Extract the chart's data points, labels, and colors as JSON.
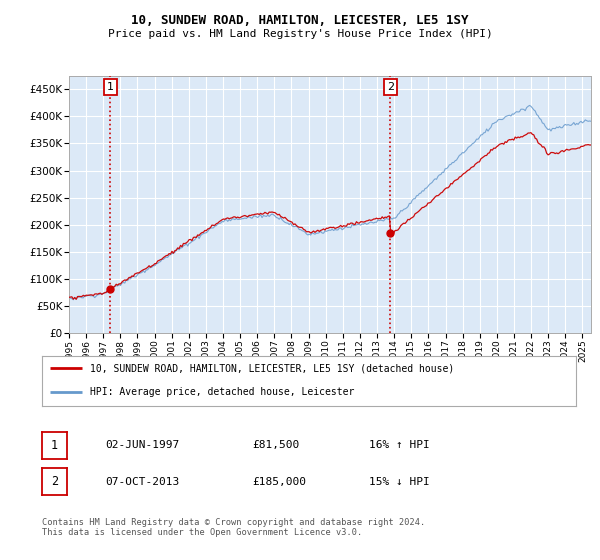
{
  "title1": "10, SUNDEW ROAD, HAMILTON, LEICESTER, LE5 1SY",
  "title2": "Price paid vs. HM Land Registry's House Price Index (HPI)",
  "plot_bg": "#dce9f7",
  "ylim": [
    0,
    475000
  ],
  "yticks": [
    0,
    50000,
    100000,
    150000,
    200000,
    250000,
    300000,
    350000,
    400000,
    450000
  ],
  "ytick_labels": [
    "£0",
    "£50K",
    "£100K",
    "£150K",
    "£200K",
    "£250K",
    "£300K",
    "£350K",
    "£400K",
    "£450K"
  ],
  "annotation1": {
    "label": "1",
    "date_x": 1997.42,
    "price": 81500,
    "date_str": "02-JUN-1997",
    "price_str": "£81,500",
    "hpi_str": "16% ↑ HPI"
  },
  "annotation2": {
    "label": "2",
    "date_x": 2013.77,
    "price": 185000,
    "date_str": "07-OCT-2013",
    "price_str": "£185,000",
    "hpi_str": "15% ↓ HPI"
  },
  "legend_line1": "10, SUNDEW ROAD, HAMILTON, LEICESTER, LE5 1SY (detached house)",
  "legend_line2": "HPI: Average price, detached house, Leicester",
  "footer": "Contains HM Land Registry data © Crown copyright and database right 2024.\nThis data is licensed under the Open Government Licence v3.0.",
  "line_color_red": "#cc0000",
  "line_color_blue": "#6699cc",
  "grid_color": "#ffffff",
  "xmin": 1995,
  "xmax": 2025.5
}
